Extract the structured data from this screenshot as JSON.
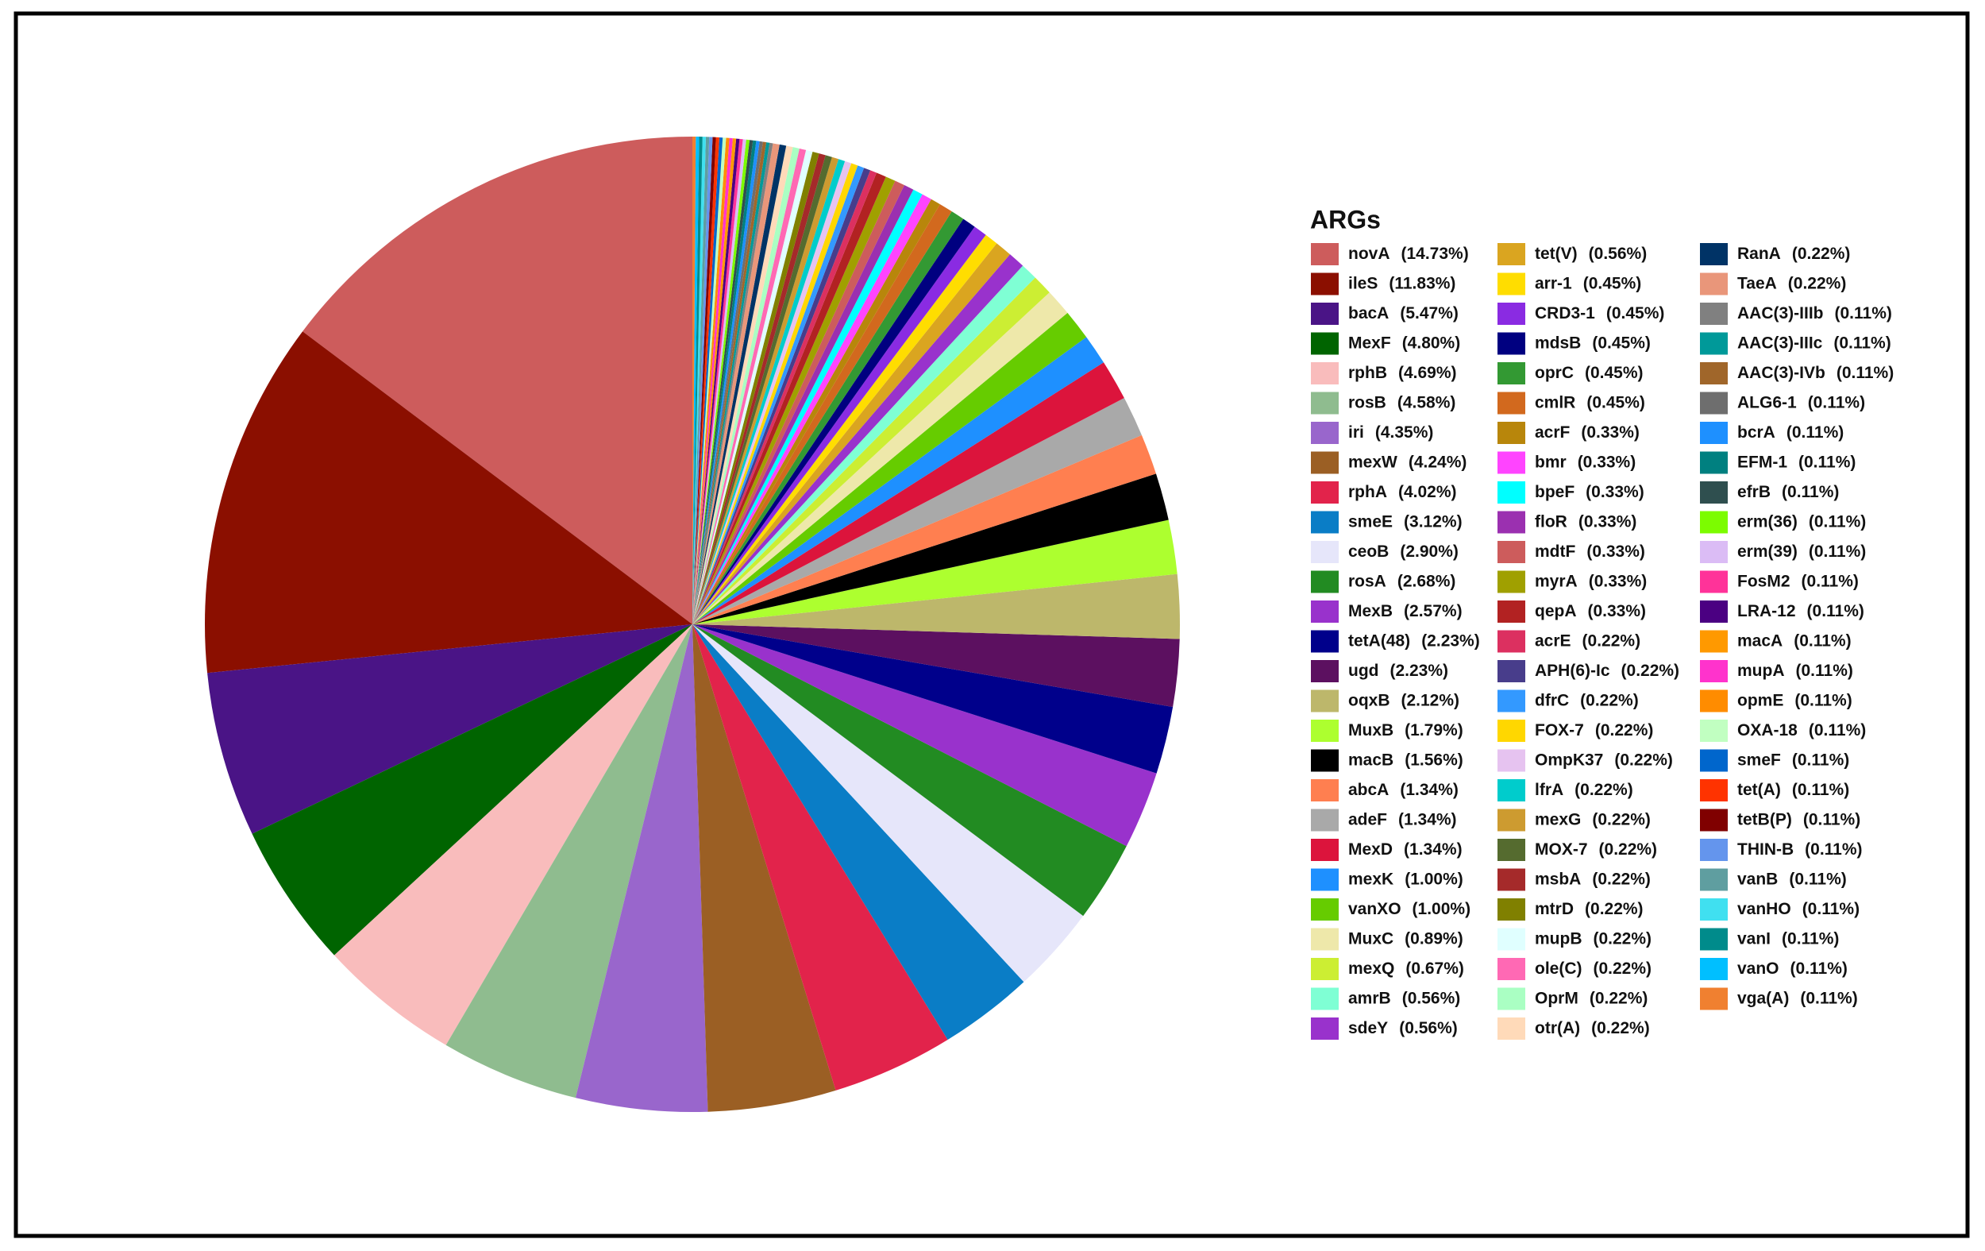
{
  "chart_data": {
    "type": "pie",
    "legend_title": "ARGs",
    "categories": [
      "novA",
      "ileS",
      "bacA",
      "MexF",
      "rphB",
      "rosB",
      "iri",
      "mexW",
      "rphA",
      "smeE",
      "ceoB",
      "rosA",
      "MexB",
      "tetA(48)",
      "ugd",
      "oqxB",
      "MuxB",
      "macB",
      "abcA",
      "adeF",
      "MexD",
      "mexK",
      "vanXO",
      "MuxC",
      "mexQ",
      "amrB",
      "sdeY",
      "tet(V)",
      "arr-1",
      "CRD3-1",
      "mdsB",
      "oprC",
      "cmlR",
      "acrF",
      "bmr",
      "bpeF",
      "floR",
      "mdtF",
      "myrA",
      "qepA",
      "acrE",
      "APH(6)-Ic",
      "dfrC",
      "FOX-7",
      "OmpK37",
      "lfrA",
      "mexG",
      "MOX-7",
      "msbA",
      "mtrD",
      "mupB",
      "ole(C)",
      "OprM",
      "otr(A)",
      "RanA",
      "TaeA",
      "AAC(3)-IIIb",
      "AAC(3)-IIIc",
      "AAC(3)-IVb",
      "ALG6-1",
      "bcrA",
      "EFM-1",
      "efrB",
      "erm(36)",
      "erm(39)",
      "FosM2",
      "LRA-12",
      "macA",
      "mupA",
      "opmE",
      "OXA-18",
      "smeF",
      "tet(A)",
      "tetB(P)",
      "THIN-B",
      "vanB",
      "vanHO",
      "vanI",
      "vanO",
      "vga(A)"
    ],
    "values": [
      14.73,
      11.83,
      5.47,
      4.8,
      4.69,
      4.58,
      4.35,
      4.24,
      4.02,
      3.12,
      2.9,
      2.68,
      2.57,
      2.23,
      2.23,
      2.12,
      1.79,
      1.56,
      1.34,
      1.34,
      1.34,
      1.0,
      1.0,
      0.89,
      0.67,
      0.56,
      0.56,
      0.56,
      0.45,
      0.45,
      0.45,
      0.45,
      0.45,
      0.33,
      0.33,
      0.33,
      0.33,
      0.33,
      0.33,
      0.33,
      0.22,
      0.22,
      0.22,
      0.22,
      0.22,
      0.22,
      0.22,
      0.22,
      0.22,
      0.22,
      0.22,
      0.22,
      0.22,
      0.22,
      0.22,
      0.22,
      0.11,
      0.11,
      0.11,
      0.11,
      0.11,
      0.11,
      0.11,
      0.11,
      0.11,
      0.11,
      0.11,
      0.11,
      0.11,
      0.11,
      0.11,
      0.11,
      0.11,
      0.11,
      0.11,
      0.11,
      0.11,
      0.11,
      0.11,
      0.11
    ],
    "value_labels": [
      "(14.73%)",
      "(11.83%)",
      "(5.47%)",
      "(4.80%)",
      "(4.69%)",
      "(4.58%)",
      "(4.35%)",
      "(4.24%)",
      "(4.02%)",
      "(3.12%)",
      "(2.90%)",
      "(2.68%)",
      "(2.57%)",
      "(2.23%)",
      "(2.23%)",
      "(2.12%)",
      "(1.79%)",
      "(1.56%)",
      "(1.34%)",
      "(1.34%)",
      "(1.34%)",
      "(1.00%)",
      "(1.00%)",
      "(0.89%)",
      "(0.67%)",
      "(0.56%)",
      "(0.56%)",
      "(0.56%)",
      "(0.45%)",
      "(0.45%)",
      "(0.45%)",
      "(0.45%)",
      "(0.45%)",
      "(0.33%)",
      "(0.33%)",
      "(0.33%)",
      "(0.33%)",
      "(0.33%)",
      "(0.33%)",
      "(0.33%)",
      "(0.22%)",
      "(0.22%)",
      "(0.22%)",
      "(0.22%)",
      "(0.22%)",
      "(0.22%)",
      "(0.22%)",
      "(0.22%)",
      "(0.22%)",
      "(0.22%)",
      "(0.22%)",
      "(0.22%)",
      "(0.22%)",
      "(0.22%)",
      "(0.22%)",
      "(0.22%)",
      "(0.11%)",
      "(0.11%)",
      "(0.11%)",
      "(0.11%)",
      "(0.11%)",
      "(0.11%)",
      "(0.11%)",
      "(0.11%)",
      "(0.11%)",
      "(0.11%)",
      "(0.11%)",
      "(0.11%)",
      "(0.11%)",
      "(0.11%)",
      "(0.11%)",
      "(0.11%)",
      "(0.11%)",
      "(0.11%)",
      "(0.11%)",
      "(0.11%)",
      "(0.11%)",
      "(0.11%)",
      "(0.11%)",
      "(0.11%)"
    ],
    "colors": [
      "#cd5c5c",
      "#8b0f00",
      "#4a1486",
      "#006400",
      "#f9bcbc",
      "#8fbc8f",
      "#9966cc",
      "#9b5f24",
      "#e2234b",
      "#0a7dc6",
      "#e6e6fa",
      "#228b22",
      "#9932cc",
      "#00008b",
      "#5c1060",
      "#bdb76b",
      "#adff2f",
      "#000000",
      "#ff7f50",
      "#a9a9a9",
      "#dc143c",
      "#1e90ff",
      "#66cc00",
      "#eee8aa",
      "#ccee33",
      "#7fffd4",
      "#9932cc",
      "#daa520",
      "#ffdd00",
      "#8a2be2",
      "#000080",
      "#339933",
      "#d2691e",
      "#b8860b",
      "#ff44ff",
      "#00ffff",
      "#9b30b0",
      "#cd5c5c",
      "#a0a000",
      "#b22222",
      "#dc3060",
      "#483d8b",
      "#3399ff",
      "#ffd700",
      "#e6c3f0",
      "#00cccc",
      "#cd9b30",
      "#556b2f",
      "#a52a2a",
      "#808000",
      "#e0ffff",
      "#ff69b4",
      "#aaffc3",
      "#ffdab9",
      "#003366",
      "#e9967a",
      "#808080",
      "#009999",
      "#a0662a",
      "#6e6e6e",
      "#1e90ff",
      "#008080",
      "#2f4f4f",
      "#7cfc00",
      "#dbbcf5",
      "#ff3399",
      "#4b0082",
      "#ff9900",
      "#ff33cc",
      "#ff8c00",
      "#c1ffc1",
      "#0066cc",
      "#ff3300",
      "#800000",
      "#6495ed",
      "#5f9ea0",
      "#40e0f0",
      "#008b8b",
      "#00bfff",
      "#f08030"
    ]
  }
}
